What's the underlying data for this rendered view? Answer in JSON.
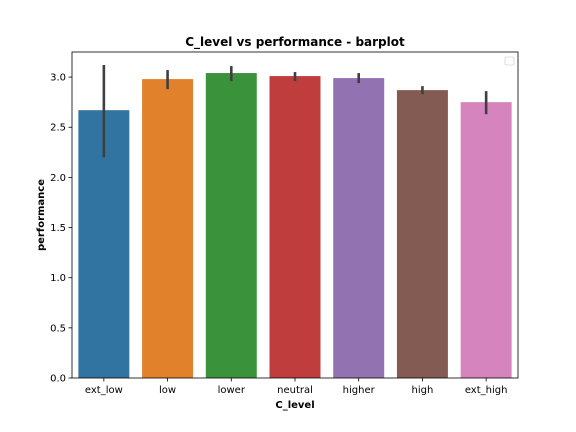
{
  "chart_data": {
    "type": "bar",
    "title": "C_level vs performance - barplot",
    "xlabel": "C_level",
    "ylabel": "performance",
    "ylim": [
      0,
      3.25
    ],
    "yticks": [
      0.0,
      0.5,
      1.0,
      1.5,
      2.0,
      2.5,
      3.0
    ],
    "ytick_labels": [
      "0.0",
      "0.5",
      "1.0",
      "1.5",
      "2.0",
      "2.5",
      "3.0"
    ],
    "categories": [
      "ext_low",
      "low",
      "lower",
      "neutral",
      "higher",
      "high",
      "ext_high"
    ],
    "values": [
      2.67,
      2.98,
      3.04,
      3.01,
      2.99,
      2.87,
      2.75
    ],
    "error_low": [
      2.2,
      2.88,
      2.96,
      2.96,
      2.94,
      2.83,
      2.63
    ],
    "error_high": [
      3.12,
      3.07,
      3.11,
      3.05,
      3.04,
      2.91,
      2.86
    ],
    "colors": [
      "#3274a1",
      "#e1812c",
      "#3a923a",
      "#c03d3e",
      "#9372b2",
      "#845b53",
      "#d684bd"
    ],
    "error_color": "#3f3f3f",
    "legend": {
      "placement": "top-right",
      "entries": []
    },
    "grid": false
  }
}
